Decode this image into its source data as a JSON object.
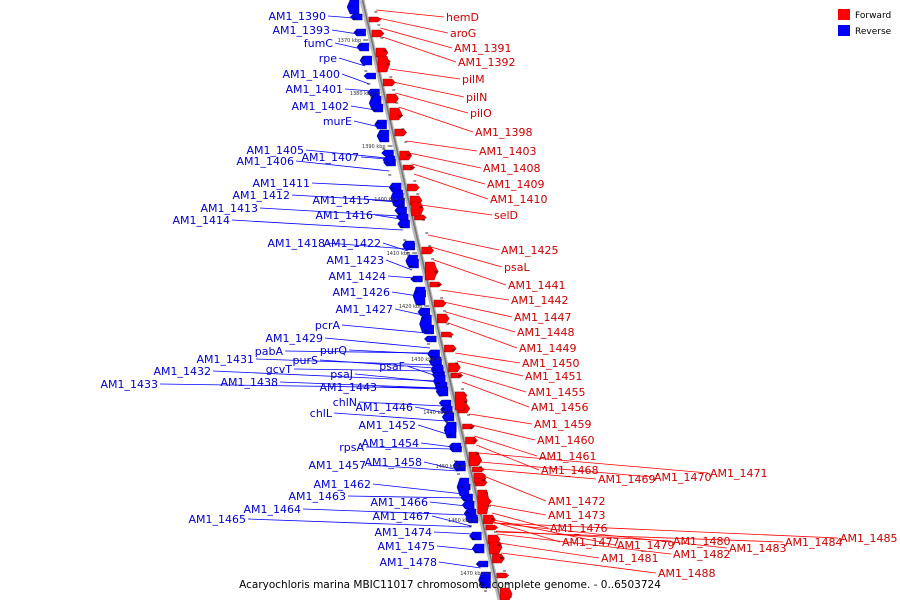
{
  "caption": "Acaryochloris marina MBIC11017 chromosome, complete genome. - 0..6503724",
  "legend": [
    {
      "label": "Forward",
      "color": "#ff0000"
    },
    {
      "label": "Reverse",
      "color": "#0000ff"
    }
  ],
  "colors": {
    "forward_label": "#cc0000",
    "reverse_label": "#0000cc",
    "axis": "#999999"
  },
  "ticks": [
    "1370 kbp",
    "1380 kbp",
    "1390 kbp",
    "1400 kbp",
    "1410 kbp",
    "1420 kbp",
    "1430 kbp",
    "1440 kbp",
    "1450 kbp",
    "1460 kbp",
    "1470 kbp"
  ],
  "reverse_genes": [
    "AM1_1390",
    "AM1_1393",
    "fumC",
    "rpe",
    "AM1_1400",
    "AM1_1401",
    "AM1_1402",
    "murE",
    "AM1_1405",
    "AM1_1406",
    "AM1_1407",
    "AM1_1411",
    "AM1_1412",
    "AM1_1413",
    "AM1_1414",
    "AM1_1415",
    "AM1_1416",
    "AM1_1418",
    "AM1_1422",
    "AM1_1423",
    "AM1_1424",
    "AM1_1426",
    "AM1_1427",
    "pcrA",
    "AM1_1429",
    "pabA",
    "purQ",
    "AM1_1431",
    "purS",
    "AM1_1432",
    "gcvT",
    "AM1_1433",
    "AM1_1438",
    "psaJ",
    "psaF",
    "AM1_1443",
    "chlN",
    "AM1_1446",
    "chlL",
    "AM1_1452",
    "rpsA",
    "AM1_1454",
    "AM1_1457",
    "AM1_1458",
    "AM1_1462",
    "AM1_1463",
    "AM1_1466",
    "AM1_1464",
    "AM1_1465",
    "AM1_1467",
    "AM1_1474",
    "AM1_1475",
    "AM1_1478"
  ],
  "forward_genes": [
    "hemD",
    "aroG",
    "AM1_1391",
    "AM1_1392",
    "pilM",
    "pilN",
    "pilO",
    "AM1_1398",
    "AM1_1403",
    "AM1_1408",
    "AM1_1409",
    "AM1_1410",
    "selD",
    "AM1_1425",
    "psaL",
    "AM1_1441",
    "AM1_1442",
    "AM1_1447",
    "AM1_1448",
    "AM1_1449",
    "AM1_1450",
    "AM1_1451",
    "AM1_1455",
    "AM1_1456",
    "AM1_1459",
    "AM1_1460",
    "AM1_1461",
    "AM1_1468",
    "AM1_1469",
    "AM1_1470",
    "AM1_1471",
    "AM1_1472",
    "AM1_1473",
    "AM1_1476",
    "AM1_1477",
    "AM1_1479",
    "AM1_1480",
    "AM1_1481",
    "AM1_1482",
    "AM1_1483",
    "AM1_1484",
    "AM1_1485",
    "AM1_1488"
  ]
}
